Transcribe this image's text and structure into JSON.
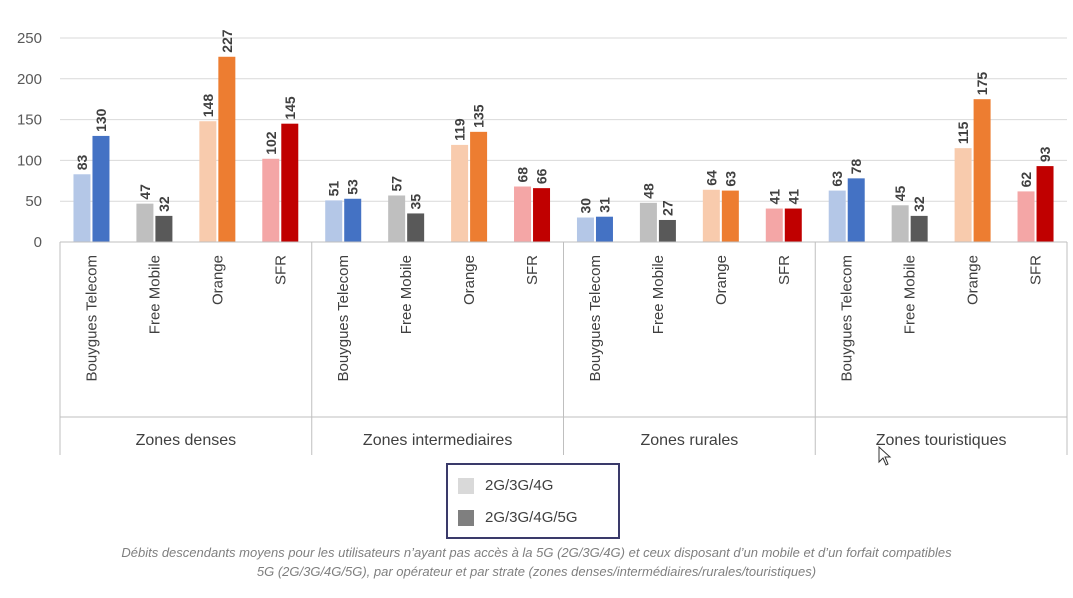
{
  "chart_data": {
    "type": "bar",
    "y_ticks": [
      "0",
      "50",
      "100",
      "150",
      "200",
      "250"
    ],
    "ylim": [
      0,
      250
    ],
    "grid": true,
    "groups": [
      {
        "name": "Zones denses",
        "operators": [
          {
            "name": "Bouygues Telecom",
            "values": [
              83,
              130
            ],
            "value_labels": [
              "83",
              "130"
            ]
          },
          {
            "name": "Free Mobile",
            "values": [
              47,
              32
            ],
            "value_labels": [
              "47",
              "32"
            ]
          },
          {
            "name": "Orange",
            "values": [
              148,
              227
            ],
            "value_labels": [
              "148",
              "227"
            ]
          },
          {
            "name": "SFR",
            "values": [
              102,
              145
            ],
            "value_labels": [
              "102",
              "145"
            ]
          }
        ]
      },
      {
        "name": "Zones intermediaires",
        "operators": [
          {
            "name": "Bouygues Telecom",
            "values": [
              51,
              53
            ],
            "value_labels": [
              "51",
              "53"
            ]
          },
          {
            "name": "Free Mobile",
            "values": [
              57,
              35
            ],
            "value_labels": [
              "57",
              "35"
            ]
          },
          {
            "name": "Orange",
            "values": [
              119,
              135
            ],
            "value_labels": [
              "119",
              "135"
            ]
          },
          {
            "name": "SFR",
            "values": [
              68,
              66
            ],
            "value_labels": [
              "68",
              "66"
            ]
          }
        ]
      },
      {
        "name": "Zones rurales",
        "operators": [
          {
            "name": "Bouygues Telecom",
            "values": [
              30,
              31
            ],
            "value_labels": [
              "30",
              "31"
            ]
          },
          {
            "name": "Free Mobile",
            "values": [
              48,
              27
            ],
            "value_labels": [
              "48",
              "27"
            ]
          },
          {
            "name": "Orange",
            "values": [
              64,
              63
            ],
            "value_labels": [
              "64",
              "63"
            ]
          },
          {
            "name": "SFR",
            "values": [
              41,
              41
            ],
            "value_labels": [
              "41",
              "41"
            ]
          }
        ]
      },
      {
        "name": "Zones touristiques",
        "operators": [
          {
            "name": "Bouygues Telecom",
            "values": [
              63,
              78
            ],
            "value_labels": [
              "63",
              "78"
            ]
          },
          {
            "name": "Free Mobile",
            "values": [
              45,
              32
            ],
            "value_labels": [
              "45",
              "32"
            ]
          },
          {
            "name": "Orange",
            "values": [
              115,
              175
            ],
            "value_labels": [
              "115",
              "175"
            ]
          },
          {
            "name": "SFR",
            "values": [
              62,
              93
            ],
            "value_labels": [
              "62",
              "93"
            ]
          }
        ]
      }
    ],
    "series": [
      {
        "name": "2G/3G/4G"
      },
      {
        "name": "2G/3G/4G/5G"
      }
    ],
    "operator_colors": {
      "Bouygues Telecom": [
        "#b4c7e7",
        "#4472c4"
      ],
      "Free Mobile": [
        "#bfbfbf",
        "#595959"
      ],
      "Orange": [
        "#f8cbad",
        "#ed7d31"
      ],
      "SFR": [
        "#f4a6a6",
        "#c00000"
      ]
    },
    "legend": {
      "placement": "bottom",
      "items": [
        {
          "label": "2G/3G/4G",
          "color": "#d9d9d9"
        },
        {
          "label": "2G/3G/4G/5G",
          "color": "#7f7f7f"
        }
      ]
    }
  },
  "caption": {
    "line1": "Débits descendants moyens pour les utilisateurs n’ayant pas accès à la 5G (2G/3G/4G) et ceux disposant d’un mobile et d’un forfait compatibles",
    "line2": "5G (2G/3G/4G/5G), par opérateur et par strate (zones denses/intermédiaires/rurales/touristiques)"
  },
  "cursor_icon": "mouse-pointer-icon"
}
